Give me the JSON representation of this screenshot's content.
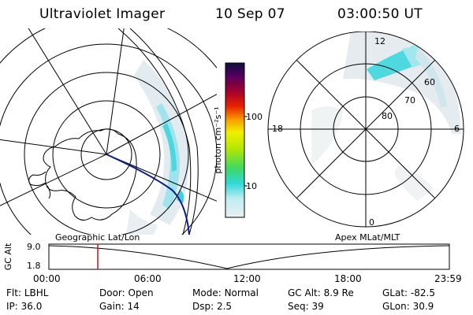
{
  "header": {
    "instrument": "Ultraviolet Imager",
    "date": "10 Sep 07",
    "time": "03:00:50 UT"
  },
  "left_panel": {
    "projection_label": "Geographic Lat/Lon"
  },
  "right_panel": {
    "projection_label": "Apex MLat/MLT",
    "mlt_labels": {
      "top": "12",
      "left": "18",
      "right": "6",
      "bottom": "0"
    },
    "lat_labels": [
      "60",
      "70",
      "80"
    ]
  },
  "colorbar": {
    "unit_label": "photon cm⁻²s⁻¹",
    "scale": "log",
    "tick_labels": [
      "100",
      "10"
    ],
    "tick_values": [
      100,
      10
    ]
  },
  "altitude_plot": {
    "ylabel": "GC Alt",
    "y_ticks": [
      "9.0",
      "1.8"
    ],
    "x_ticks": [
      "00:00",
      "06:00",
      "12:00",
      "18:00",
      "23:59"
    ],
    "current_time_marker": "03:00",
    "marker_color": "#d01010"
  },
  "info": {
    "row1": [
      {
        "label": "Flt:",
        "value": "LBHL"
      },
      {
        "label": "Door:",
        "value": "Open"
      },
      {
        "label": "Mode:",
        "value": "Normal"
      },
      {
        "label": "GC Alt:",
        "value": "8.9 Re"
      },
      {
        "label": "GLat:",
        "value": "-82.5"
      }
    ],
    "row2": [
      {
        "label": "IP:",
        "value": "36.0"
      },
      {
        "label": "Gain:",
        "value": "14"
      },
      {
        "label": "Dsp:",
        "value": "2.5"
      },
      {
        "label": "Seq:",
        "value": "39"
      },
      {
        "label": "GLon:",
        "value": "30.9"
      }
    ]
  }
}
